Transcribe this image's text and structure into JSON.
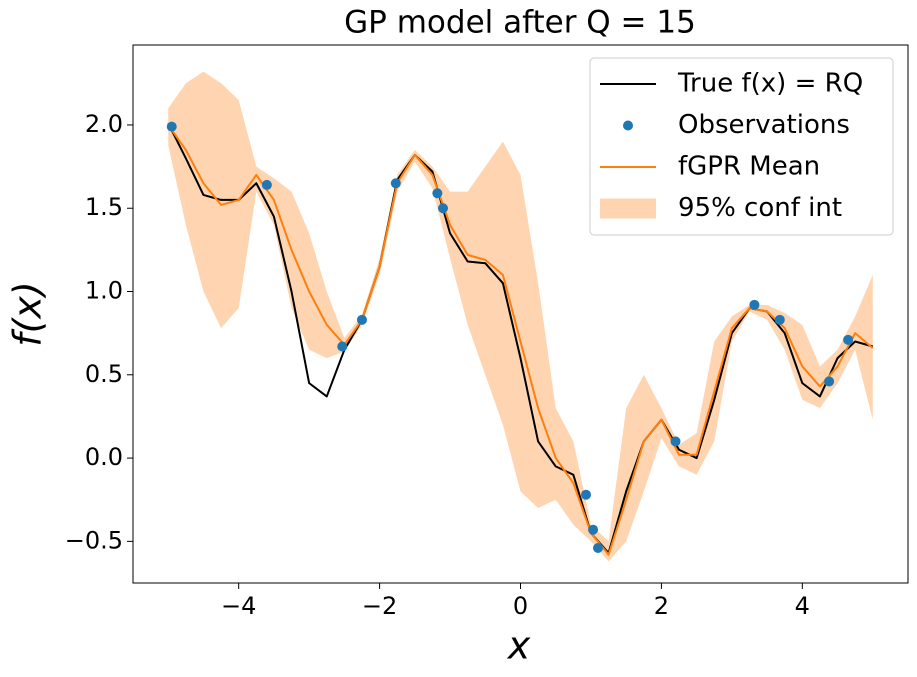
{
  "chart_data": {
    "type": "line",
    "title": "GP model after Q = 15",
    "xlabel": "x",
    "ylabel": "f(x)",
    "xlim": [
      -5.5,
      5.5
    ],
    "ylim": [
      -0.75,
      2.48
    ],
    "xticks": [
      {
        "value": -4,
        "label": "−4"
      },
      {
        "value": -2,
        "label": "−2"
      },
      0,
      2,
      4
    ],
    "yticks": [
      {
        "value": -0.5,
        "label": "−0.5"
      },
      {
        "value": 0,
        "label": "0.0"
      },
      0.5,
      {
        "value": 1,
        "label": "1.0"
      },
      1.5,
      {
        "value": 2,
        "label": "2.0"
      }
    ],
    "grid": false,
    "legend": "upper right",
    "x": [
      -5,
      -4.75,
      -4.5,
      -4.25,
      -4,
      -3.75,
      -3.5,
      -3.25,
      -3,
      -2.75,
      -2.5,
      -2.25,
      -2,
      -1.75,
      -1.5,
      -1.25,
      -1,
      -0.75,
      -0.5,
      -0.25,
      0,
      0.25,
      0.5,
      0.75,
      1,
      1.25,
      1.5,
      1.75,
      2,
      2.25,
      2.5,
      2.75,
      3,
      3.25,
      3.5,
      3.75,
      4,
      4.25,
      4.5,
      4.75,
      5
    ],
    "series": [
      {
        "name": "True f(x) = RQ",
        "color": "#000000",
        "values": [
          2.01,
          1.8,
          1.58,
          1.55,
          1.55,
          1.65,
          1.45,
          1.0,
          0.45,
          0.37,
          0.65,
          0.83,
          1.15,
          1.67,
          1.82,
          1.72,
          1.35,
          1.18,
          1.17,
          1.05,
          0.6,
          0.1,
          -0.05,
          -0.1,
          -0.45,
          -0.57,
          -0.2,
          0.1,
          0.23,
          0.05,
          0.0,
          0.35,
          0.75,
          0.9,
          0.88,
          0.75,
          0.45,
          0.37,
          0.6,
          0.7,
          0.67
        ]
      },
      {
        "name": "fGPR Mean",
        "color": "#ff7f0e",
        "values": [
          2.0,
          1.85,
          1.65,
          1.52,
          1.55,
          1.7,
          1.55,
          1.25,
          1.0,
          0.8,
          0.68,
          0.83,
          1.15,
          1.65,
          1.82,
          1.7,
          1.4,
          1.22,
          1.19,
          1.1,
          0.7,
          0.3,
          0.0,
          -0.15,
          -0.45,
          -0.58,
          -0.25,
          0.1,
          0.23,
          0.02,
          0.02,
          0.4,
          0.78,
          0.9,
          0.88,
          0.78,
          0.55,
          0.43,
          0.55,
          0.75,
          0.66
        ]
      }
    ],
    "band": {
      "name": "95% conf int",
      "color": "#ffd4b0",
      "upper": [
        2.1,
        2.25,
        2.32,
        2.25,
        2.15,
        1.75,
        1.68,
        1.6,
        1.35,
        1.0,
        0.72,
        0.86,
        1.2,
        1.7,
        1.85,
        1.75,
        1.6,
        1.6,
        1.75,
        1.9,
        1.7,
        1.05,
        0.3,
        0.1,
        -0.4,
        -0.5,
        0.3,
        0.5,
        0.3,
        0.08,
        0.15,
        0.7,
        0.85,
        0.92,
        0.92,
        0.87,
        0.8,
        0.55,
        0.65,
        0.85,
        1.1
      ],
      "lower": [
        1.88,
        1.4,
        1.0,
        0.78,
        0.9,
        1.6,
        1.4,
        0.9,
        0.65,
        0.6,
        0.64,
        0.8,
        1.1,
        1.6,
        1.78,
        1.62,
        1.2,
        0.8,
        0.5,
        0.2,
        -0.2,
        -0.3,
        -0.25,
        -0.4,
        -0.5,
        -0.62,
        -0.5,
        -0.2,
        0.12,
        -0.05,
        -0.1,
        0.1,
        0.7,
        0.88,
        0.83,
        0.65,
        0.35,
        0.3,
        0.45,
        0.65,
        0.23
      ]
    },
    "observations": {
      "name": "Observations",
      "color": "#1f77b4",
      "x": [
        -4.95,
        -3.6,
        -2.53,
        -2.25,
        -1.77,
        -1.18,
        -1.1,
        0.93,
        1.03,
        1.1,
        2.2,
        3.32,
        3.68,
        4.38,
        4.65
      ],
      "y": [
        1.99,
        1.64,
        0.67,
        0.83,
        1.65,
        1.59,
        1.5,
        -0.22,
        -0.43,
        -0.54,
        0.1,
        0.92,
        0.83,
        0.46,
        0.71
      ]
    }
  }
}
